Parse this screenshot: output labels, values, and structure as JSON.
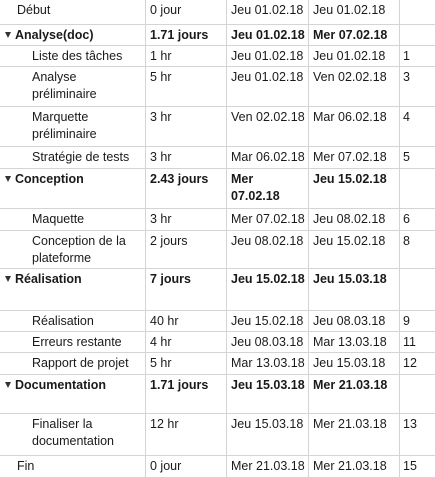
{
  "rows": [
    {
      "name": "Début",
      "duration": "0 jour",
      "start": "Jeu 01.02.18",
      "end": "Jeu 01.02.18",
      "pred": "",
      "level": 0,
      "summary": false
    },
    {
      "name": "Analyse(doc)",
      "duration": "1.71 jours",
      "start": "Jeu 01.02.18",
      "end": "Mer 07.02.18",
      "pred": "",
      "level": 0,
      "summary": true
    },
    {
      "name": "Liste des tâches",
      "duration": "1 hr",
      "start": "Jeu 01.02.18",
      "end": "Jeu 01.02.18",
      "pred": "1",
      "level": 1,
      "summary": false
    },
    {
      "name": "Analyse préliminaire",
      "duration": "5 hr",
      "start": "Jeu 01.02.18",
      "end": "Ven 02.02.18",
      "pred": "3",
      "level": 1,
      "summary": false
    },
    {
      "name": "Marquette préliminaire",
      "duration": "3 hr",
      "start": "Ven 02.02.18",
      "end": "Mar 06.02.18",
      "pred": "4",
      "level": 1,
      "summary": false
    },
    {
      "name": "Stratégie de tests",
      "duration": "3 hr",
      "start": "Mar 06.02.18",
      "end": "Mer 07.02.18",
      "pred": "5",
      "level": 1,
      "summary": false
    },
    {
      "name": "Conception",
      "duration": "2.43 jours",
      "start": "Mer 07.02.18",
      "end": "Jeu 15.02.18",
      "pred": "",
      "level": 0,
      "summary": true
    },
    {
      "name": "Maquette",
      "duration": "3 hr",
      "start": "Mer 07.02.18",
      "end": "Jeu 08.02.18",
      "pred": "6",
      "level": 1,
      "summary": false
    },
    {
      "name": "Conception de la plateforme",
      "duration": "2 jours",
      "start": "Jeu 08.02.18",
      "end": "Jeu 15.02.18",
      "pred": "8",
      "level": 1,
      "summary": false
    },
    {
      "name": "Réalisation",
      "duration": "7 jours",
      "start": "Jeu 15.02.18",
      "end": "Jeu 15.03.18",
      "pred": "",
      "level": 0,
      "summary": true
    },
    {
      "name": "Réalisation",
      "duration": "40 hr",
      "start": "Jeu 15.02.18",
      "end": "Jeu 08.03.18",
      "pred": "9",
      "level": 1,
      "summary": false
    },
    {
      "name": "Erreurs restante",
      "duration": "4 hr",
      "start": "Jeu 08.03.18",
      "end": "Mar 13.03.18",
      "pred": "11",
      "level": 1,
      "summary": false
    },
    {
      "name": "Rapport de projet",
      "duration": "5 hr",
      "start": "Mar 13.03.18",
      "end": "Jeu 15.03.18",
      "pred": "12",
      "level": 1,
      "summary": false
    },
    {
      "name": "Documentation",
      "duration": "1.71 jours",
      "start": "Jeu 15.03.18",
      "end": "Mer 21.03.18",
      "pred": "",
      "level": 0,
      "summary": true
    },
    {
      "name": "Finaliser la documentation",
      "duration": "12 hr",
      "start": "Jeu 15.03.18",
      "end": "Mer 21.03.18",
      "pred": "13",
      "level": 1,
      "summary": false
    },
    {
      "name": "Fin",
      "duration": "0 jour",
      "start": "Mer 21.03.18",
      "end": "Mer 21.03.18",
      "pred": "15",
      "level": 0,
      "summary": false
    }
  ]
}
